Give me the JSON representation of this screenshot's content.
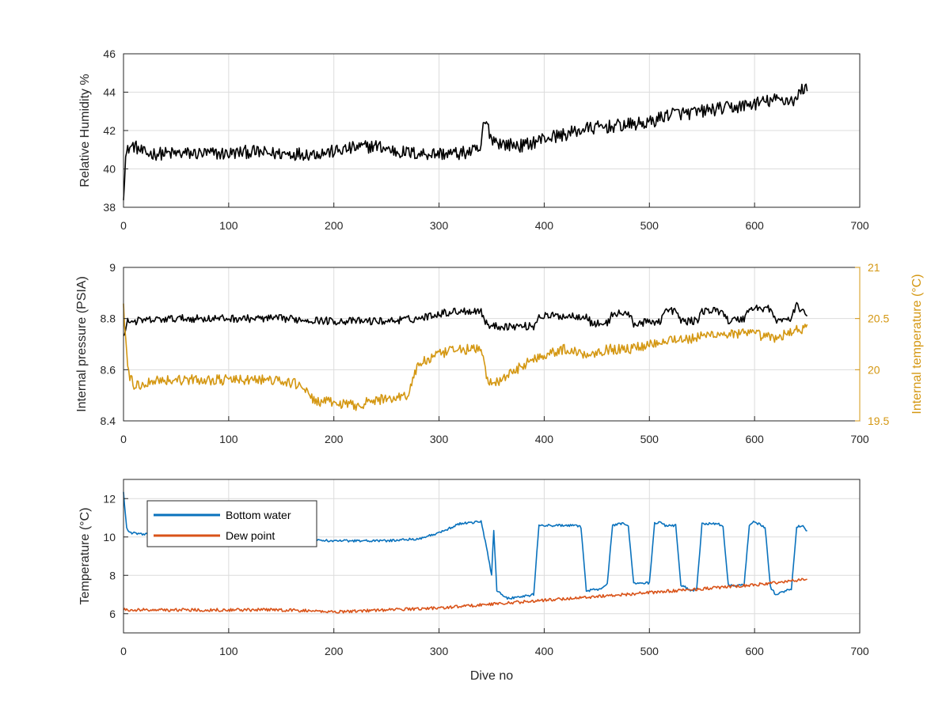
{
  "chart_data": [
    {
      "type": "line",
      "xlabel": "",
      "ylabel": "Relative Humidity %",
      "xlim": [
        0,
        700
      ],
      "ylim": [
        38,
        46
      ],
      "xticks": [
        0,
        100,
        200,
        300,
        400,
        500,
        600,
        700
      ],
      "yticks": [
        38,
        40,
        42,
        44,
        46
      ],
      "grid": true,
      "series": [
        {
          "color": "#000000",
          "noise": 0.35,
          "x": [
            0,
            2,
            5,
            10,
            20,
            40,
            60,
            80,
            100,
            120,
            140,
            160,
            180,
            200,
            220,
            240,
            260,
            280,
            300,
            320,
            340,
            342,
            345,
            350,
            360,
            380,
            400,
            420,
            440,
            460,
            480,
            500,
            520,
            540,
            560,
            580,
            600,
            620,
            640,
            645,
            650
          ],
          "y": [
            38.7,
            40.6,
            41.1,
            41.2,
            40.8,
            40.8,
            40.8,
            40.8,
            40.8,
            40.9,
            40.8,
            40.8,
            40.8,
            40.9,
            41.1,
            41.2,
            40.9,
            40.8,
            40.8,
            40.8,
            41.0,
            42.3,
            42.4,
            41.6,
            41.3,
            41.2,
            41.6,
            41.8,
            42.1,
            42.2,
            42.3,
            42.4,
            42.9,
            42.9,
            43.1,
            43.2,
            43.4,
            43.6,
            43.6,
            44.2,
            44.2
          ]
        }
      ]
    },
    {
      "type": "line",
      "xlabel": "",
      "ylabel": "Internal pressure (PSIA)",
      "y2label": "Internal temperature (°C)",
      "xlim": [
        0,
        700
      ],
      "ylim": [
        8.4,
        9.0
      ],
      "y2lim": [
        19.5,
        21.0
      ],
      "xticks": [
        0,
        100,
        200,
        300,
        400,
        500,
        600,
        700
      ],
      "yticks": [
        8.4,
        8.6,
        8.8,
        9.0
      ],
      "y2ticks": [
        19.5,
        20.0,
        20.5,
        21.0
      ],
      "grid": true,
      "series": [
        {
          "axis": "left",
          "color": "#000000",
          "noise": 0.015,
          "x": [
            0,
            3,
            10,
            50,
            100,
            150,
            200,
            250,
            280,
            300,
            320,
            340,
            345,
            350,
            390,
            395,
            440,
            445,
            460,
            465,
            480,
            485,
            510,
            515,
            525,
            530,
            545,
            550,
            570,
            575,
            590,
            595,
            615,
            620,
            635,
            640,
            650
          ],
          "y": [
            8.72,
            8.79,
            8.79,
            8.8,
            8.8,
            8.8,
            8.79,
            8.79,
            8.8,
            8.82,
            8.83,
            8.83,
            8.78,
            8.77,
            8.77,
            8.81,
            8.81,
            8.78,
            8.78,
            8.82,
            8.82,
            8.78,
            8.79,
            8.83,
            8.83,
            8.79,
            8.79,
            8.83,
            8.83,
            8.79,
            8.8,
            8.84,
            8.84,
            8.79,
            8.8,
            8.85,
            8.82
          ]
        },
        {
          "axis": "right",
          "color": "#d49712",
          "noise": 0.05,
          "x": [
            0,
            2,
            5,
            10,
            15,
            30,
            60,
            100,
            140,
            170,
            180,
            220,
            240,
            270,
            280,
            300,
            320,
            340,
            345,
            350,
            360,
            380,
            400,
            420,
            440,
            460,
            480,
            500,
            520,
            540,
            560,
            580,
            600,
            620,
            640,
            650
          ],
          "y": [
            20.6,
            20.3,
            19.95,
            19.85,
            19.85,
            19.9,
            19.9,
            19.9,
            19.9,
            19.85,
            19.7,
            19.65,
            19.7,
            19.75,
            20.05,
            20.15,
            20.2,
            20.2,
            19.95,
            19.85,
            19.9,
            20.05,
            20.15,
            20.2,
            20.15,
            20.2,
            20.2,
            20.25,
            20.3,
            20.3,
            20.35,
            20.35,
            20.35,
            20.3,
            20.4,
            20.4
          ]
        }
      ]
    },
    {
      "type": "line",
      "xlabel": "Dive no",
      "ylabel": "Temperature (°C)",
      "xlim": [
        0,
        700
      ],
      "ylim": [
        5,
        13
      ],
      "xticks": [
        0,
        100,
        200,
        300,
        400,
        500,
        600,
        700
      ],
      "yticks": [
        6,
        8,
        10,
        12
      ],
      "grid": true,
      "legend": "top-left",
      "series": [
        {
          "name": "Bottom water",
          "color": "#0a72bd",
          "noise": 0.06,
          "x": [
            0,
            3,
            6,
            10,
            30,
            60,
            100,
            150,
            200,
            250,
            280,
            300,
            320,
            340,
            345,
            350,
            352,
            355,
            365,
            380,
            390,
            395,
            430,
            435,
            440,
            455,
            460,
            465,
            475,
            480,
            485,
            500,
            505,
            510,
            515,
            525,
            530,
            540,
            545,
            550,
            565,
            570,
            575,
            590,
            595,
            600,
            610,
            615,
            620,
            635,
            640,
            645,
            650
          ],
          "y": [
            12.3,
            10.5,
            10.2,
            10.2,
            10.1,
            10.0,
            10.0,
            9.9,
            9.8,
            9.8,
            9.9,
            10.2,
            10.7,
            10.8,
            9.5,
            8.0,
            10.4,
            7.2,
            6.8,
            6.9,
            7.0,
            10.6,
            10.6,
            10.5,
            7.2,
            7.3,
            7.6,
            10.6,
            10.7,
            10.6,
            7.6,
            7.6,
            10.7,
            10.8,
            10.6,
            10.6,
            7.5,
            7.2,
            7.3,
            10.7,
            10.7,
            10.5,
            7.5,
            7.5,
            10.6,
            10.8,
            10.5,
            7.4,
            7.0,
            7.3,
            10.5,
            10.6,
            10.3
          ]
        },
        {
          "name": "Dew point",
          "color": "#d95319",
          "noise": 0.08,
          "x": [
            0,
            50,
            100,
            150,
            200,
            250,
            300,
            350,
            400,
            450,
            500,
            550,
            600,
            650
          ],
          "y": [
            6.2,
            6.2,
            6.2,
            6.2,
            6.1,
            6.2,
            6.3,
            6.5,
            6.7,
            6.9,
            7.1,
            7.3,
            7.5,
            7.8
          ]
        }
      ]
    }
  ]
}
